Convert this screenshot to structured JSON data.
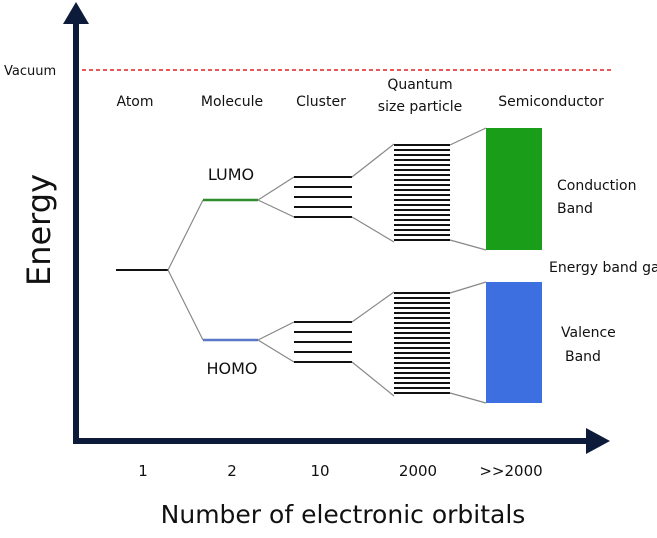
{
  "axes": {
    "y_label": "Energy",
    "x_label": "Number of electronic orbitals",
    "vacuum_label": "Vacuum"
  },
  "columns": [
    {
      "title_lines": [
        "Atom"
      ],
      "orbital_count": "1"
    },
    {
      "title_lines": [
        "Molecule"
      ],
      "orbital_count": "2"
    },
    {
      "title_lines": [
        "Cluster"
      ],
      "orbital_count": "10"
    },
    {
      "title_lines": [
        "Quantum",
        "size particle"
      ],
      "orbital_count": "2000"
    },
    {
      "title_lines": [
        "Semiconductor"
      ],
      "orbital_count": ">>2000"
    }
  ],
  "levels": {
    "lumo": "LUMO",
    "homo": "HOMO"
  },
  "bands": {
    "conduction": [
      "Conduction",
      "Band"
    ],
    "valence": [
      "Valence",
      "Band"
    ],
    "gap": "Energy band gap"
  },
  "colors": {
    "vacuum_line": "#e02020",
    "lumo_line": "#2e8b2e",
    "homo_line": "#5b77c9",
    "conduction_band": "#1a9e1a",
    "valence_band": "#3d6fe0",
    "axis": "#0d1b3a"
  }
}
